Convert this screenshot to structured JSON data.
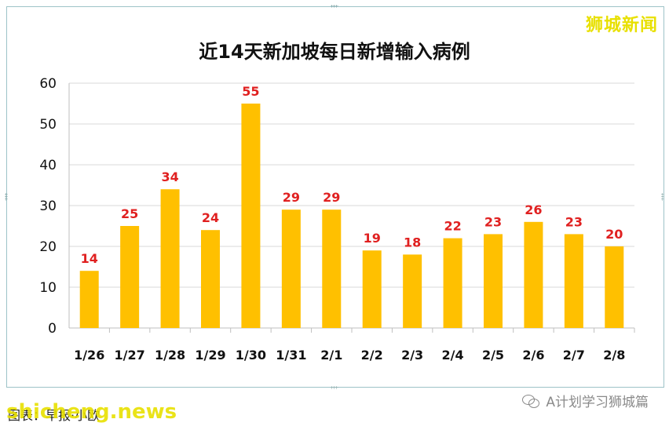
{
  "brand": "狮城新闻",
  "caption": "图表：早报·小欧",
  "watermark": "shicheng.news",
  "wechat_account": "A计划学习狮城篇",
  "colors": {
    "bar": "#ffc000",
    "label": "#e02020",
    "grid": "#d9d9d9",
    "frame": "#9dc3c8"
  },
  "icons": {
    "wechat": "wechat-icon"
  },
  "chart_data": {
    "type": "bar",
    "title": "近14天新加坡每日新增输入病例",
    "categories": [
      "1/26",
      "1/27",
      "1/28",
      "1/29",
      "1/30",
      "1/31",
      "2/1",
      "2/2",
      "2/3",
      "2/4",
      "2/5",
      "2/6",
      "2/7",
      "2/8"
    ],
    "values": [
      14,
      25,
      34,
      24,
      55,
      29,
      29,
      19,
      18,
      22,
      23,
      26,
      23,
      20
    ],
    "ylim": [
      0,
      60
    ],
    "yticks": [
      0,
      10,
      20,
      30,
      40,
      50,
      60
    ],
    "xlabel": "",
    "ylabel": "",
    "grid": true,
    "legend": "none",
    "data_labels": true
  }
}
